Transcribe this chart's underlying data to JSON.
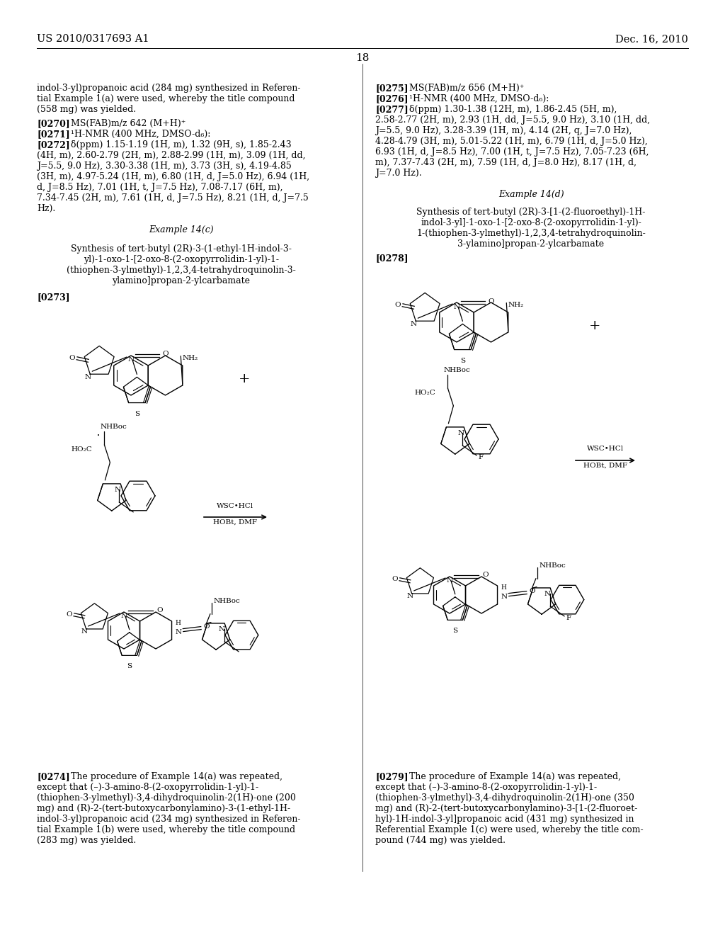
{
  "bg_color": "#ffffff",
  "header_left": "US 2010/0317693 A1",
  "header_right": "Dec. 16, 2010",
  "page_number": "18",
  "font_size_body": 9.0,
  "font_size_header": 10.5,
  "font_size_page_num": 11
}
